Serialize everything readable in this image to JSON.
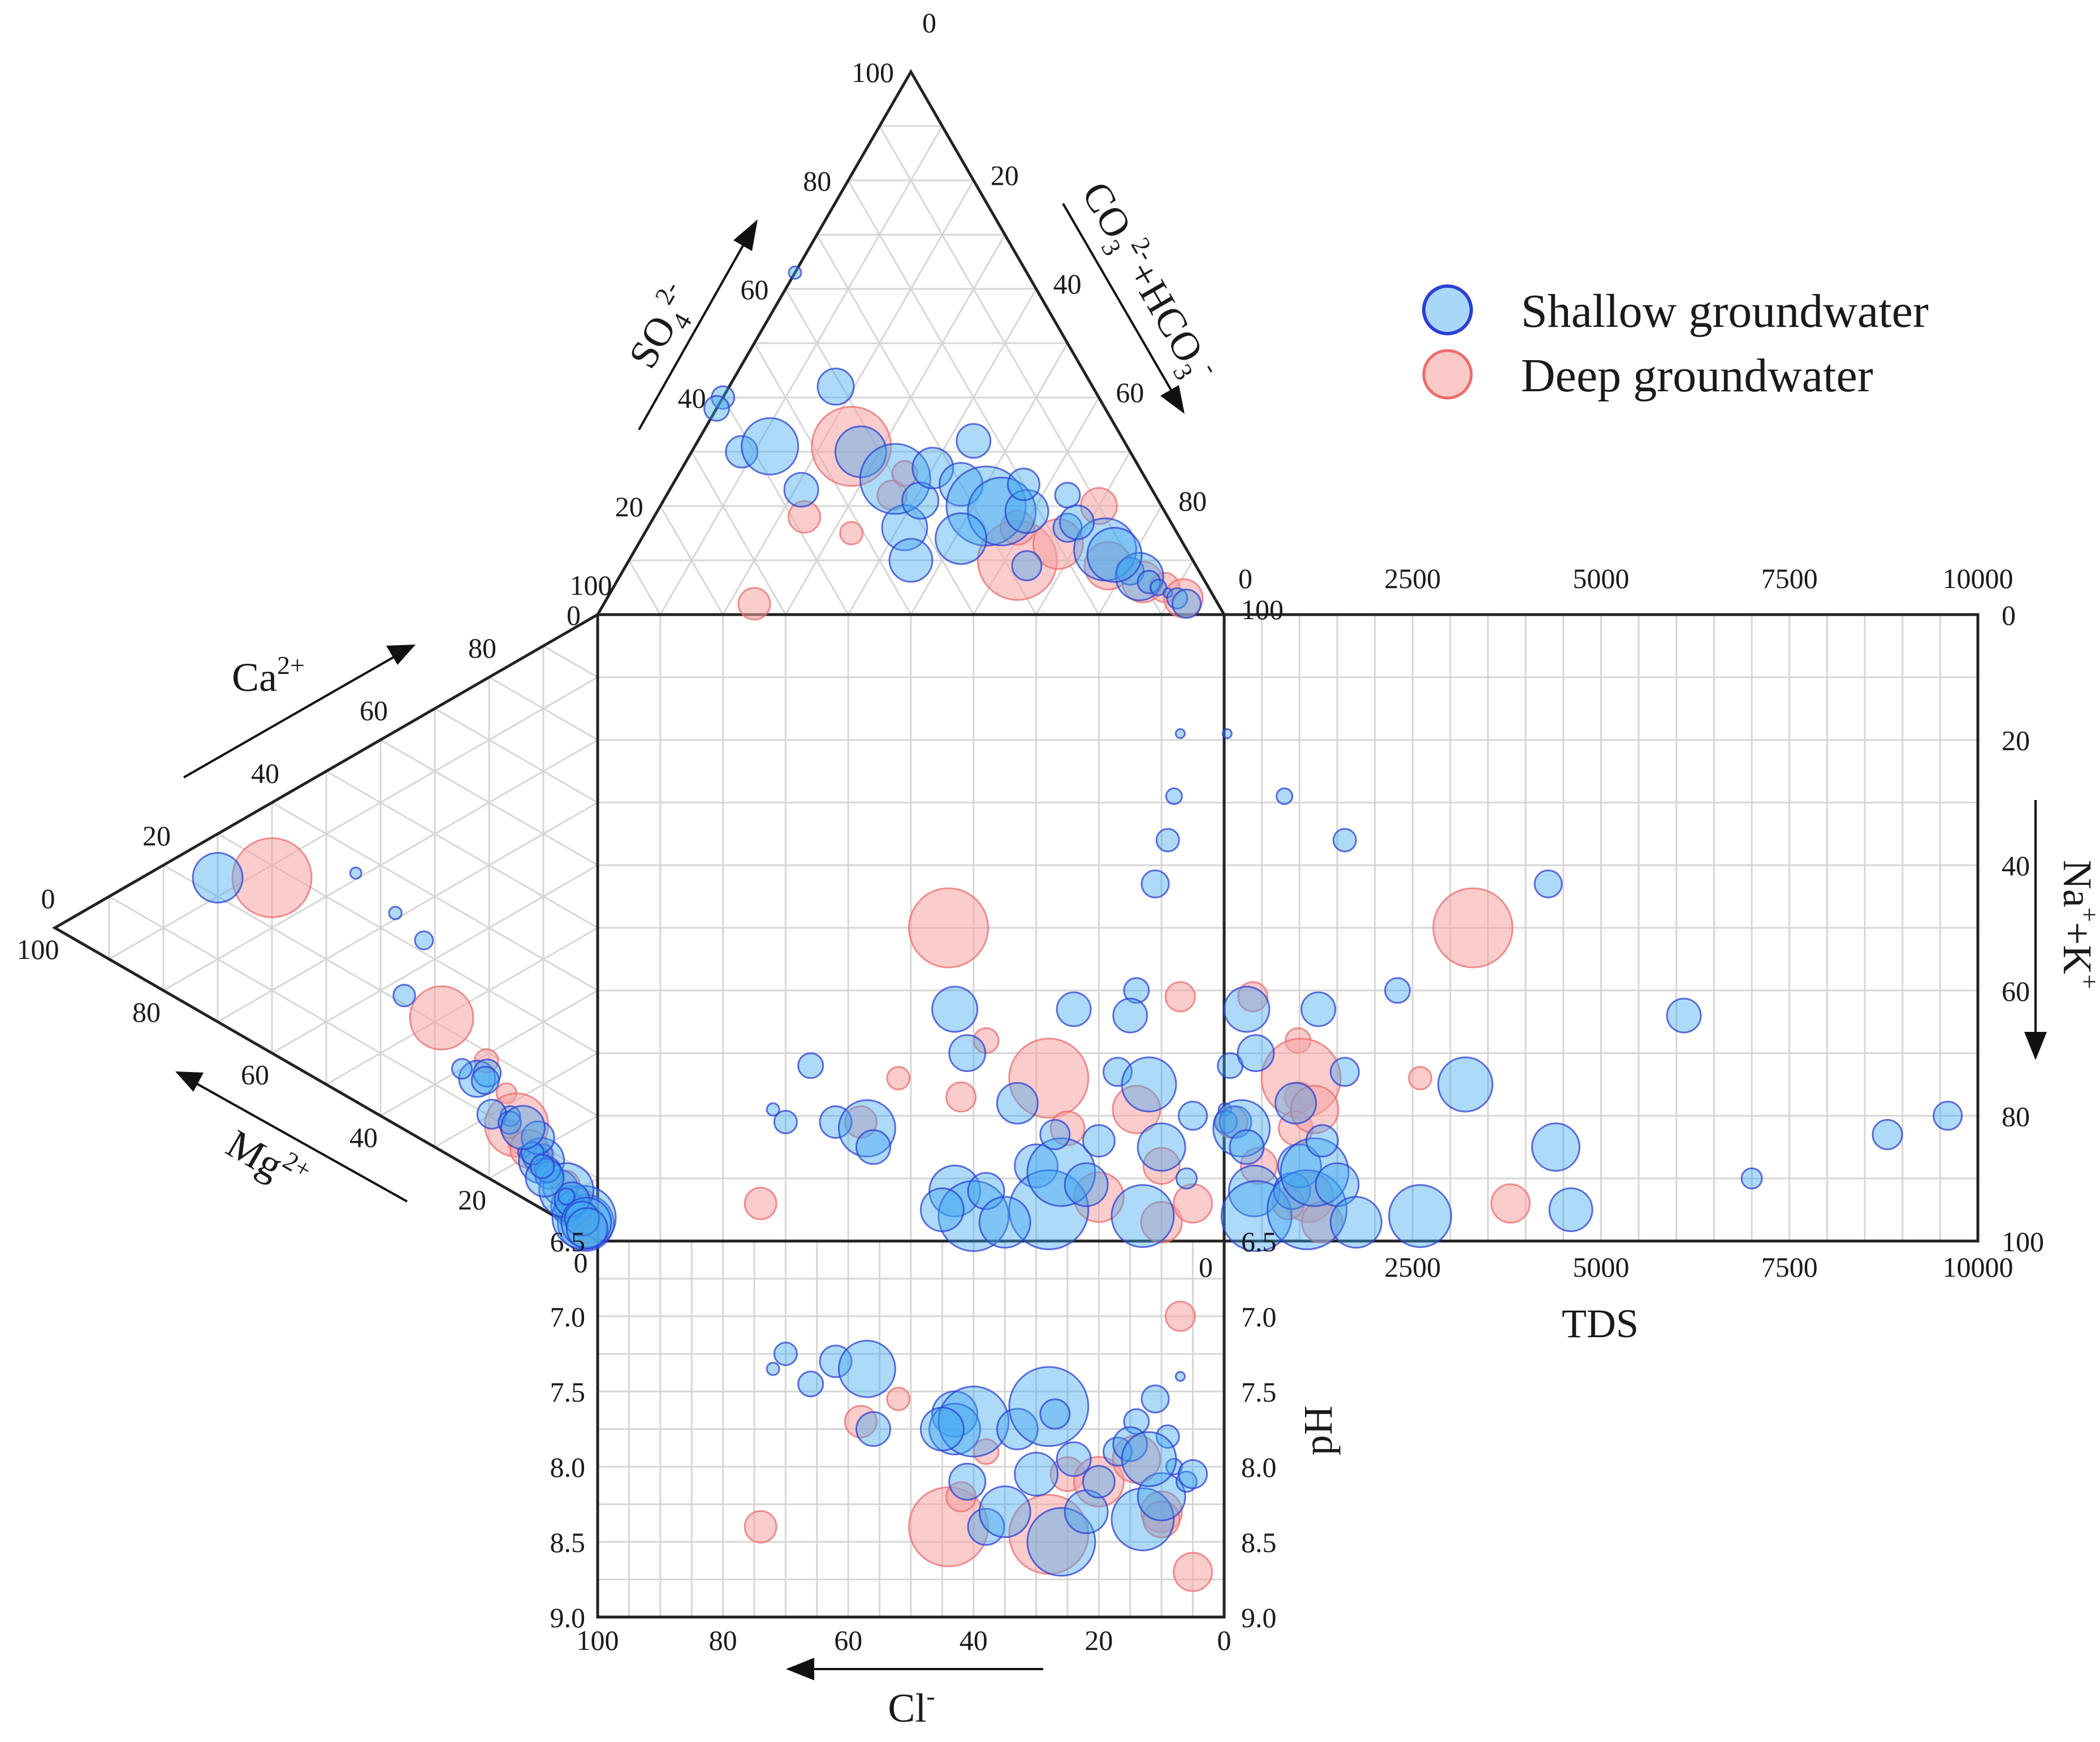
{
  "chart_data": {
    "type": "scatter",
    "title": "Durov diagram",
    "colors": {
      "shallow": "#3ea6f0",
      "shallow_edge": "#2b3fd6",
      "deep": "#f8a3a3",
      "deep_edge": "#ee6b6b"
    },
    "legend": [
      {
        "key": "shallow",
        "label": "Shallow groundwater"
      },
      {
        "key": "deep",
        "label": "Deep groundwater"
      }
    ],
    "axes": {
      "anion_triangle": {
        "so4": {
          "label": "SO",
          "sub": "4",
          "sup": "2-",
          "ticks": [
            "100",
            "80",
            "60",
            "40",
            "20",
            "0"
          ]
        },
        "hco3": {
          "label_main": "CO",
          "sub1": "3",
          "sup1": "2-",
          "label_rest": "+HCO",
          "sub2": "3",
          "sup2": "-",
          "ticks": [
            "0",
            "20",
            "40",
            "60",
            "80",
            "100"
          ]
        }
      },
      "cation_triangle": {
        "ca": {
          "label": "Ca",
          "sup": "2+",
          "ticks": [
            "0",
            "20",
            "40",
            "60",
            "80",
            "100"
          ]
        },
        "mg": {
          "label": "Mg",
          "sup": "2+",
          "ticks": [
            "100",
            "80",
            "60",
            "40",
            "20",
            "0"
          ]
        }
      },
      "cl": {
        "label": "Cl",
        "sup": "-",
        "ticks": [
          "100",
          "80",
          "60",
          "40",
          "20",
          "0"
        ],
        "range": [
          100,
          0
        ]
      },
      "na_k": {
        "label": "Na",
        "sup1": "+",
        "mid": "+K",
        "sup2": "+",
        "ticks": [
          "0",
          "20",
          "40",
          "60",
          "80",
          "100"
        ],
        "range": [
          0,
          100
        ]
      },
      "tds": {
        "label": "TDS",
        "ticks": [
          "0",
          "2500",
          "5000",
          "7500",
          "10000"
        ],
        "range": [
          0,
          10000
        ]
      },
      "ph": {
        "label": "pH",
        "ticks": [
          "6.5",
          "7.0",
          "7.5",
          "8.0",
          "8.5",
          "9.0"
        ],
        "range": [
          6.5,
          9.0
        ]
      }
    },
    "samples": [
      {
        "g": "s",
        "cl": 72,
        "na": 79,
        "tds": 10,
        "ph": 7.35,
        "r": 11,
        "so4": 63
      },
      {
        "g": "s",
        "cl": 70,
        "na": 81,
        "tds": 20,
        "ph": 7.25,
        "r": 20,
        "so4": 40
      },
      {
        "g": "s",
        "cl": 66,
        "na": 72,
        "tds": 80,
        "ph": 7.45,
        "r": 22,
        "so4": 38
      },
      {
        "g": "s",
        "cl": 62,
        "na": 81,
        "tds": 150,
        "ph": 7.3,
        "r": 28,
        "so4": 30
      },
      {
        "g": "s",
        "cl": 57,
        "na": 82,
        "tds": 230,
        "ph": 7.35,
        "r": 50,
        "so4": 31
      },
      {
        "g": "s",
        "cl": 56,
        "na": 85,
        "tds": 300,
        "ph": 7.75,
        "r": 30,
        "so4": 23
      },
      {
        "g": "s",
        "cl": 43,
        "na": 63,
        "tds": 300,
        "ph": 7.65,
        "r": 40,
        "so4": 16
      },
      {
        "g": "s",
        "cl": 43,
        "na": 92,
        "tds": 400,
        "ph": 7.75,
        "r": 45,
        "so4": 30
      },
      {
        "g": "s",
        "cl": 41,
        "na": 70,
        "tds": 420,
        "ph": 8.1,
        "r": 32,
        "so4": 42
      },
      {
        "g": "s",
        "cl": 40,
        "na": 96,
        "tds": 430,
        "ph": 7.7,
        "r": 62,
        "so4": 25
      },
      {
        "g": "s",
        "cl": 38,
        "na": 92,
        "tds": 900,
        "ph": 8.4,
        "r": 32,
        "so4": 21
      },
      {
        "g": "s",
        "cl": 33,
        "na": 78,
        "tds": 950,
        "ph": 7.75,
        "r": 36,
        "so4": 27
      },
      {
        "g": "s",
        "cl": 30,
        "na": 88,
        "tds": 1000,
        "ph": 8.05,
        "r": 38,
        "so4": 24
      },
      {
        "g": "s",
        "cl": 28,
        "na": 95,
        "tds": 1100,
        "ph": 7.6,
        "r": 70,
        "so4": 20
      },
      {
        "g": "s",
        "cl": 26,
        "na": 89,
        "tds": 1200,
        "ph": 8.5,
        "r": 60,
        "so4": 19
      },
      {
        "g": "s",
        "cl": 24,
        "na": 63,
        "tds": 1250,
        "ph": 7.95,
        "r": 30,
        "so4": 32
      },
      {
        "g": "s",
        "cl": 22,
        "na": 91,
        "tds": 1500,
        "ph": 8.3,
        "r": 38,
        "so4": 19
      },
      {
        "g": "s",
        "cl": 20,
        "na": 84,
        "tds": 1300,
        "ph": 8.1,
        "r": 28,
        "so4": 24
      },
      {
        "g": "s",
        "cl": 17,
        "na": 73,
        "tds": 1600,
        "ph": 7.9,
        "r": 25,
        "so4": 16
      },
      {
        "g": "s",
        "cl": 14,
        "na": 60,
        "tds": 2300,
        "ph": 7.7,
        "r": 22,
        "so4": 22
      },
      {
        "g": "s",
        "cl": 13,
        "na": 96,
        "tds": 2600,
        "ph": 8.35,
        "r": 55,
        "so4": 12
      },
      {
        "g": "s",
        "cl": 11,
        "na": 43,
        "tds": 4300,
        "ph": 7.55,
        "r": 24,
        "so4": 8
      },
      {
        "g": "s",
        "cl": 10,
        "na": 85,
        "tds": 4400,
        "ph": 8.2,
        "r": 42,
        "so4": 7
      },
      {
        "g": "s",
        "cl": 9,
        "na": 36,
        "tds": 1600,
        "ph": 7.8,
        "r": 20,
        "so4": 6
      },
      {
        "g": "s",
        "cl": 8,
        "na": 29,
        "tds": 800,
        "ph": 8.0,
        "r": 14,
        "so4": 5
      },
      {
        "g": "s",
        "cl": 7,
        "na": 19,
        "tds": 40,
        "ph": 7.4,
        "r": 8,
        "so4": 4
      },
      {
        "g": "s",
        "cl": 6,
        "na": 90,
        "tds": 7000,
        "ph": 8.1,
        "r": 18,
        "so4": 3
      },
      {
        "g": "s",
        "cl": 5,
        "na": 80,
        "tds": 9600,
        "ph": 8.05,
        "r": 25,
        "so4": 2
      },
      {
        "g": "s",
        "cl": 45,
        "na": 95,
        "tds": 4600,
        "ph": 7.75,
        "r": 38,
        "so4": 10
      },
      {
        "g": "s",
        "cl": 35,
        "na": 97,
        "tds": 1750,
        "ph": 8.3,
        "r": 45,
        "so4": 14
      },
      {
        "g": "s",
        "cl": 15,
        "na": 64,
        "tds": 6100,
        "ph": 7.85,
        "r": 30,
        "so4": 17
      },
      {
        "g": "s",
        "cl": 27,
        "na": 83,
        "tds": 8800,
        "ph": 7.65,
        "r": 26,
        "so4": 9
      },
      {
        "g": "s",
        "cl": 12,
        "na": 75,
        "tds": 3200,
        "ph": 7.95,
        "r": 48,
        "so4": 11
      },
      {
        "g": "d",
        "cl": 58,
        "na": 81,
        "tds": 100,
        "ph": 7.7,
        "r": 28,
        "so4": 18
      },
      {
        "g": "d",
        "cl": 44,
        "na": 50,
        "tds": 3300,
        "ph": 8.4,
        "r": 70,
        "so4": 31
      },
      {
        "g": "d",
        "cl": 42,
        "na": 77,
        "tds": 1000,
        "ph": 8.2,
        "r": 26,
        "so4": 22
      },
      {
        "g": "d",
        "cl": 38,
        "na": 68,
        "tds": 980,
        "ph": 7.9,
        "r": 22,
        "so4": 26
      },
      {
        "g": "d",
        "cl": 28,
        "na": 74,
        "tds": 1020,
        "ph": 8.45,
        "r": 70,
        "so4": 10
      },
      {
        "g": "d",
        "cl": 25,
        "na": 82,
        "tds": 950,
        "ph": 8.05,
        "r": 30,
        "so4": 16
      },
      {
        "g": "d",
        "cl": 20,
        "na": 93,
        "tds": 1120,
        "ph": 8.1,
        "r": 44,
        "so4": 13
      },
      {
        "g": "d",
        "cl": 14,
        "na": 79,
        "tds": 1200,
        "ph": 7.95,
        "r": 42,
        "so4": 9
      },
      {
        "g": "d",
        "cl": 10,
        "na": 97,
        "tds": 1300,
        "ph": 8.3,
        "r": 36,
        "so4": 6
      },
      {
        "g": "d",
        "cl": 7,
        "na": 61,
        "tds": 380,
        "ph": 7.0,
        "r": 26,
        "so4": 5
      },
      {
        "g": "d",
        "cl": 5,
        "na": 94,
        "tds": 3800,
        "ph": 8.7,
        "r": 34,
        "so4": 3
      },
      {
        "g": "d",
        "cl": 74,
        "na": 94,
        "tds": 850,
        "ph": 8.4,
        "r": 28,
        "so4": 2
      },
      {
        "g": "d",
        "cl": 52,
        "na": 74,
        "tds": 2600,
        "ph": 7.55,
        "r": 20,
        "so4": 15
      },
      {
        "g": "d",
        "cl": 10,
        "na": 88,
        "tds": 460,
        "ph": 8.35,
        "r": 32,
        "so4": 20
      }
    ],
    "outer_samples": [
      {
        "g": "d",
        "ca": 28,
        "mg": 60,
        "r": 70
      },
      {
        "g": "s",
        "ca": 23,
        "mg": 70,
        "r": 44
      }
    ]
  }
}
